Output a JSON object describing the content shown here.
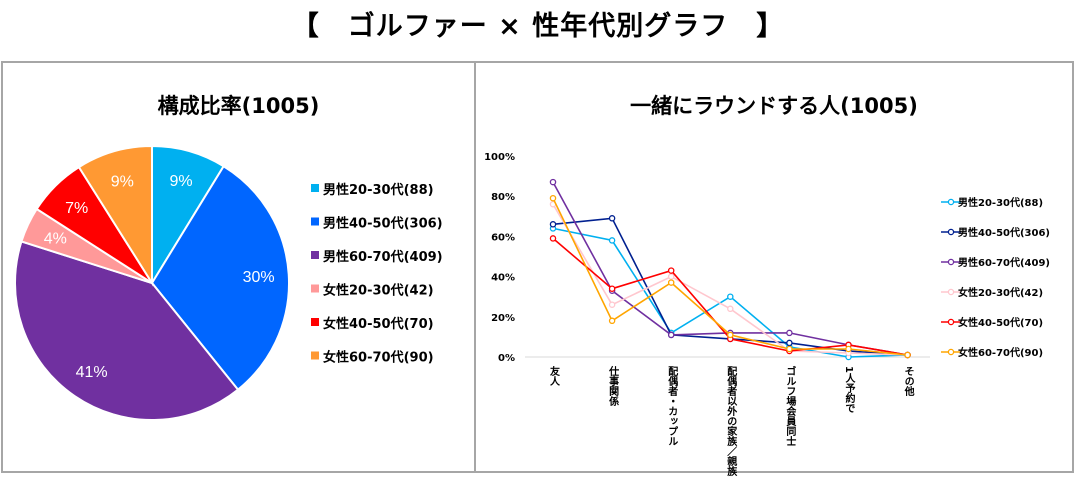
{
  "page": {
    "title": "【　ゴルファー × 性年代別グラフ　】"
  },
  "chart_data": [
    {
      "type": "pie",
      "title": "構成比率(1005)",
      "start_angle_deg": 0,
      "direction": "clockwise",
      "legend_position": "right",
      "slices": [
        {
          "label": "男性20-30代(88)",
          "value": 88,
          "percent_label": "9%",
          "color": "#00b0f0",
          "label_color": "#ffffff"
        },
        {
          "label": "男性40-50代(306)",
          "value": 306,
          "percent_label": "30%",
          "color": "#0066ff",
          "label_color": "#ffffff"
        },
        {
          "label": "男性60-70代(409)",
          "value": 409,
          "percent_label": "41%",
          "color": "#7030a0",
          "label_color": "#ffffff"
        },
        {
          "label": "女性20-30代(42)",
          "value": 42,
          "percent_label": "4%",
          "color": "#ff9999",
          "label_color": "#ffffff"
        },
        {
          "label": "女性40-50代(70)",
          "value": 70,
          "percent_label": "7%",
          "color": "#ff0000",
          "label_color": "#ffffff"
        },
        {
          "label": "女性60-70代(90)",
          "value": 90,
          "percent_label": "9%",
          "color": "#ff9933",
          "label_color": "#ffffff"
        }
      ]
    },
    {
      "type": "line",
      "title": "一緒にラウンドする人(1005)",
      "ylim": [
        0,
        100
      ],
      "y_ticks": [
        "0%",
        "20%",
        "40%",
        "60%",
        "80%",
        "100%"
      ],
      "grid": false,
      "legend_position": "right",
      "categories": [
        "友人",
        "仕事関係",
        "配偶者・カップル",
        "配偶者以外の家族／親族",
        "ゴルフ場会員同士",
        "1人予約で",
        "その他"
      ],
      "series": [
        {
          "name": "男性20-30代(88)",
          "color": "#00b0f0",
          "values": [
            64,
            58,
            12,
            30,
            5,
            0,
            1
          ]
        },
        {
          "name": "男性40-50代(306)",
          "color": "#002090",
          "values": [
            66,
            69,
            11,
            9,
            7,
            3,
            1
          ]
        },
        {
          "name": "男性60-70代(409)",
          "color": "#7030a0",
          "values": [
            87,
            33,
            11,
            12,
            12,
            6,
            1
          ]
        },
        {
          "name": "女性20-30代(42)",
          "color": "#ffc7ce",
          "values": [
            76,
            26,
            40,
            24,
            3,
            2,
            1
          ]
        },
        {
          "name": "女性40-50代(70)",
          "color": "#ff0000",
          "values": [
            59,
            34,
            43,
            9,
            3,
            6,
            1
          ]
        },
        {
          "name": "女性60-70代(90)",
          "color": "#ffa500",
          "values": [
            79,
            18,
            37,
            11,
            4,
            4,
            1
          ]
        }
      ]
    }
  ]
}
